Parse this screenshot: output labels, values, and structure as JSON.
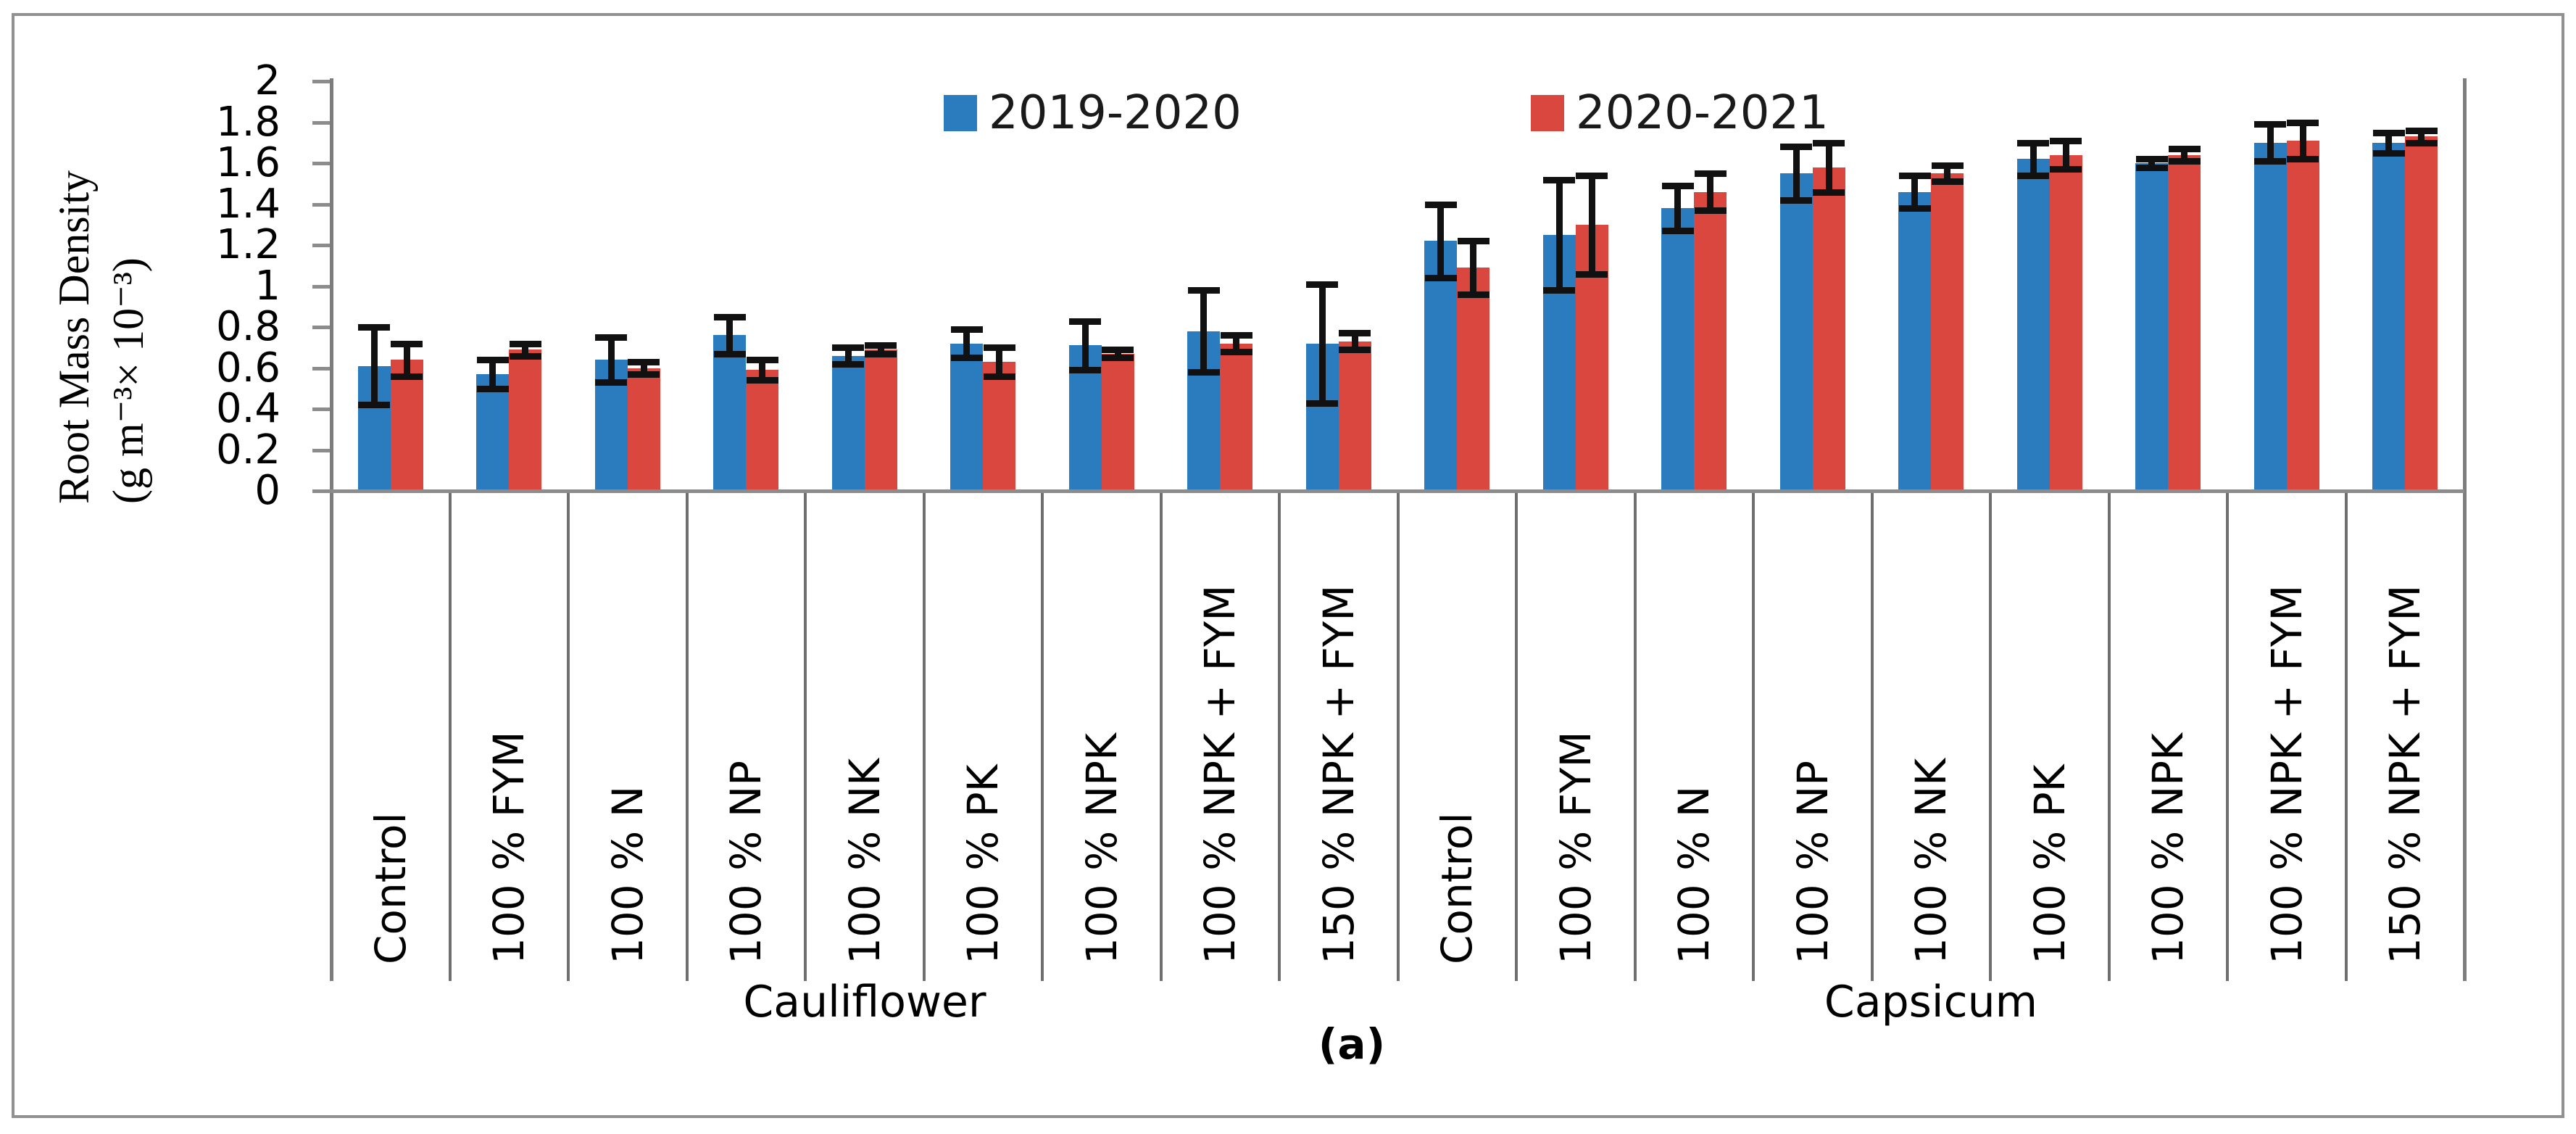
{
  "figure": {
    "caption": "(a)"
  },
  "y_axis": {
    "title_line1": "Root Mass Density",
    "title_line2": "(g m⁻³× 10⁻³)",
    "tick_labels": [
      "0",
      "0.2",
      "0.4",
      "0.6",
      "0.8",
      "1",
      "1.2",
      "1.4",
      "1.6",
      "1.8",
      "2"
    ]
  },
  "x_axis": {
    "group_labels": [
      "Cauliflower",
      "Capsicum"
    ]
  },
  "chart_data": {
    "type": "bar",
    "title": "",
    "ylabel": "Root Mass Density (g m⁻³× 10⁻³)",
    "xlabel": "",
    "ylim": [
      0,
      2
    ],
    "ytick_step": 0.2,
    "grid": false,
    "legend_position": "top",
    "error_bars": true,
    "categories": [
      "Control",
      "100 % FYM",
      "100 % N",
      "100 % NP",
      "100 % NK",
      "100 % PK",
      "100 % NPK",
      "100 % NPK + FYM",
      "150 % NPK + FYM",
      "Control",
      "100 % FYM",
      "100 % N",
      "100 % NP",
      "100 % NK",
      "100 % PK",
      "100 % NPK",
      "100 % NPK + FYM",
      "150 % NPK + FYM"
    ],
    "groups": [
      {
        "label": "Cauliflower",
        "start": 0,
        "end": 9
      },
      {
        "label": "Capsicum",
        "start": 9,
        "end": 18
      }
    ],
    "series": [
      {
        "name": "2019-2020",
        "color": "#2A7CBE",
        "values": [
          0.61,
          0.57,
          0.64,
          0.76,
          0.66,
          0.72,
          0.71,
          0.78,
          0.72,
          1.22,
          1.25,
          1.38,
          1.55,
          1.46,
          1.62,
          1.6,
          1.7,
          1.7
        ],
        "errors": [
          0.19,
          0.07,
          0.11,
          0.09,
          0.04,
          0.07,
          0.12,
          0.2,
          0.29,
          0.18,
          0.27,
          0.11,
          0.13,
          0.08,
          0.08,
          0.02,
          0.09,
          0.05
        ]
      },
      {
        "name": "2020-2021",
        "color": "#D9473F",
        "values": [
          0.64,
          0.69,
          0.6,
          0.59,
          0.69,
          0.63,
          0.67,
          0.72,
          0.73,
          1.09,
          1.3,
          1.46,
          1.58,
          1.55,
          1.64,
          1.64,
          1.71,
          1.73
        ],
        "errors": [
          0.08,
          0.03,
          0.03,
          0.05,
          0.02,
          0.07,
          0.02,
          0.04,
          0.04,
          0.13,
          0.24,
          0.09,
          0.12,
          0.04,
          0.07,
          0.03,
          0.09,
          0.03
        ]
      }
    ]
  }
}
